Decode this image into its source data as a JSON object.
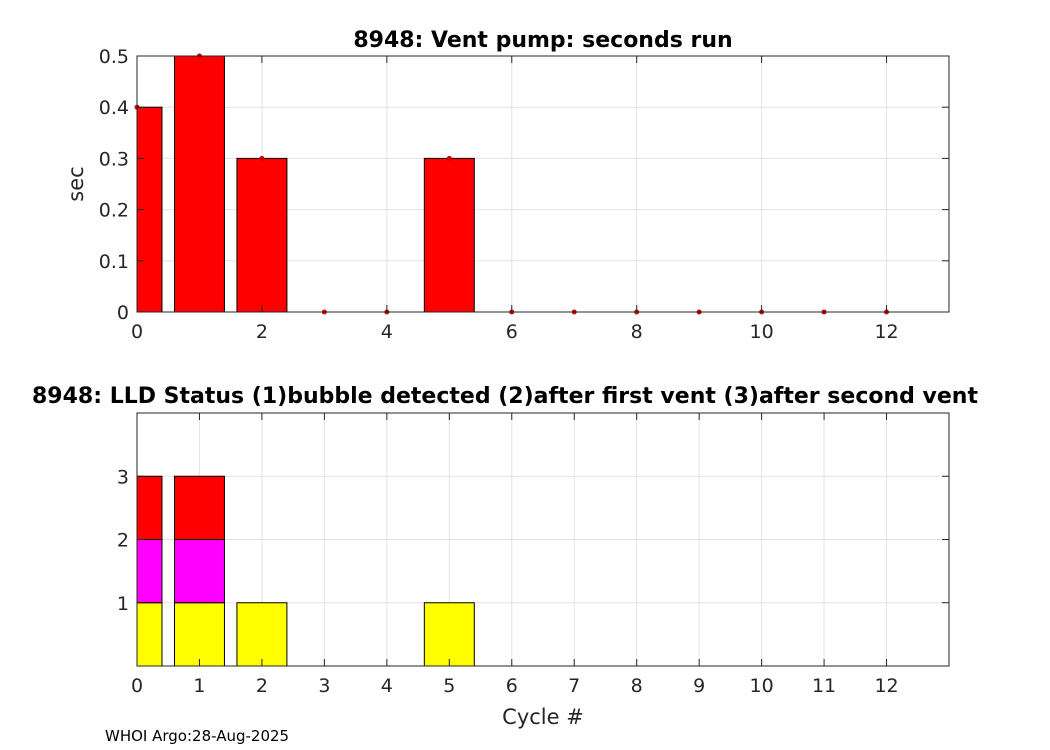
{
  "footer": "WHOI Argo:28-Aug-2025",
  "chart_data": [
    {
      "type": "bar",
      "title": "8948: Vent pump: seconds run",
      "xlabel": "",
      "ylabel": "sec",
      "x": [
        0,
        1,
        2,
        3,
        4,
        5,
        6,
        7,
        8,
        9,
        10,
        11,
        12
      ],
      "values": [
        0.4,
        0.5,
        0.3,
        0,
        0,
        0.3,
        0,
        0,
        0,
        0,
        0,
        0,
        0
      ],
      "xlim": [
        0,
        13
      ],
      "ylim": [
        0,
        0.5
      ],
      "xticks": [
        0,
        2,
        4,
        6,
        8,
        10,
        12
      ],
      "yticks": [
        0,
        0.1,
        0.2,
        0.3,
        0.4,
        0.5
      ],
      "xtick_labels": [
        "0",
        "2",
        "4",
        "6",
        "8",
        "10",
        "12"
      ],
      "ytick_labels": [
        "0",
        "0.1",
        "0.2",
        "0.3",
        "0.4",
        "0.5"
      ],
      "bar_color": "#ff0000",
      "marker_color": "#cc0000",
      "grid": true
    },
    {
      "type": "bar",
      "title": "8948: LLD Status   (1)bubble detected   (2)after first vent  (3)after second vent",
      "xlabel": "Cycle #",
      "ylabel": "",
      "x": [
        0,
        1,
        2,
        3,
        4,
        5,
        6,
        7,
        8,
        9,
        10,
        11,
        12
      ],
      "values": [
        3,
        3,
        1,
        0,
        0,
        1,
        0,
        0,
        0,
        0,
        0,
        0,
        0
      ],
      "xlim": [
        0,
        13
      ],
      "ylim": [
        0,
        4
      ],
      "xticks": [
        0,
        1,
        2,
        3,
        4,
        5,
        6,
        7,
        8,
        9,
        10,
        11,
        12
      ],
      "yticks": [
        1,
        2,
        3
      ],
      "xtick_labels": [
        "0",
        "1",
        "2",
        "3",
        "4",
        "5",
        "6",
        "7",
        "8",
        "9",
        "10",
        "11",
        "12"
      ],
      "ytick_labels": [
        "1",
        "2",
        "3"
      ],
      "level_colors": [
        "#ffff00",
        "#ff00ff",
        "#ff0000"
      ],
      "grid": true
    }
  ]
}
